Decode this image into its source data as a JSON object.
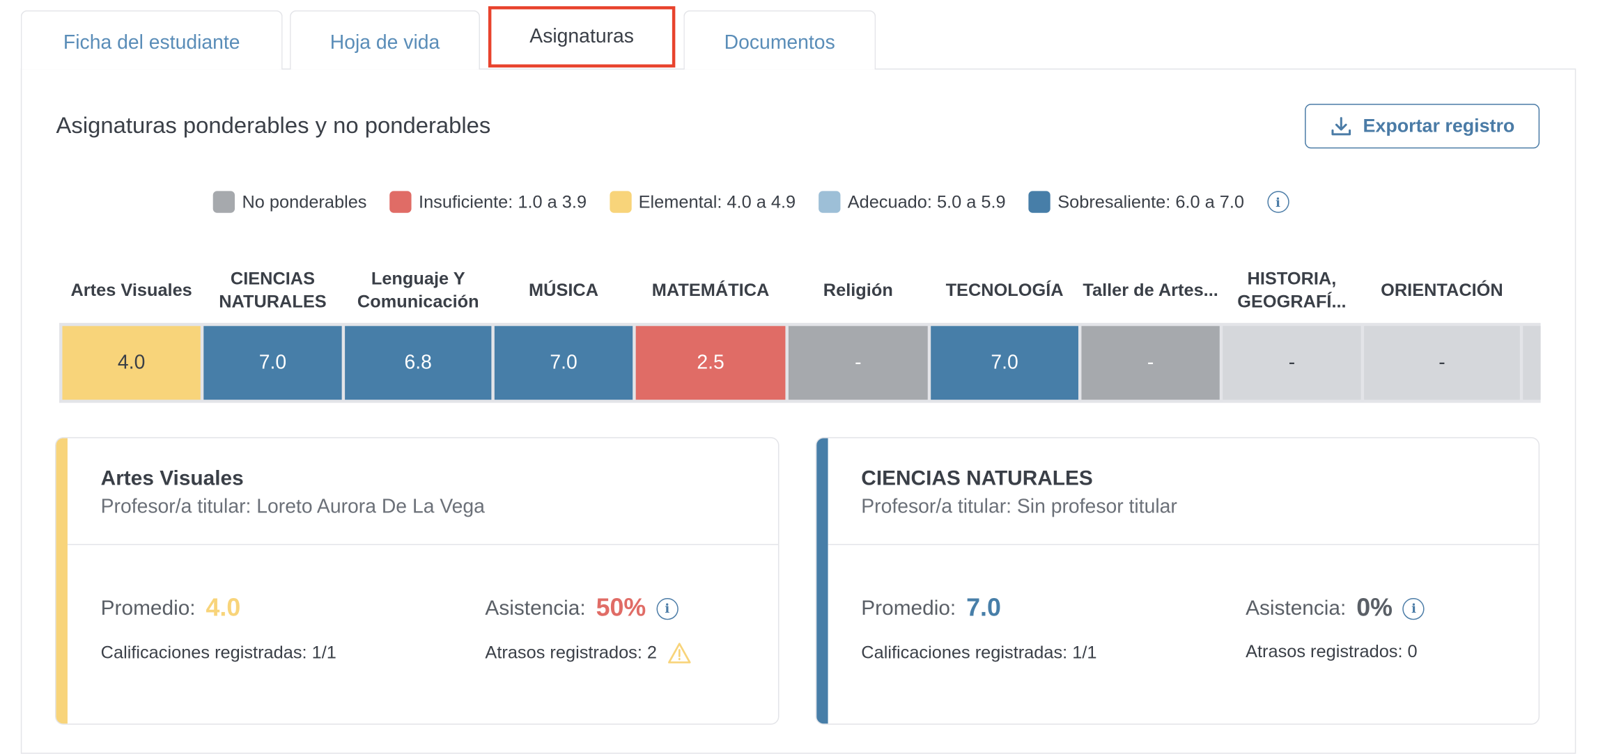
{
  "tabs": [
    {
      "label": "Ficha del estudiante"
    },
    {
      "label": "Hoja de vida"
    },
    {
      "label": "Asignaturas",
      "active": true
    },
    {
      "label": "Documentos"
    }
  ],
  "section_title": "Asignaturas ponderables y no ponderables",
  "export_label": "Exportar registro",
  "legend": [
    {
      "label": "No ponderables",
      "color": "#a6a9ad"
    },
    {
      "label": "Insuficiente: 1.0 a 3.9",
      "color": "#e06c66"
    },
    {
      "label": "Elemental: 4.0 a 4.9",
      "color": "#f8d47a"
    },
    {
      "label": "Adecuado: 5.0 a 5.9",
      "color": "#9dbfd7"
    },
    {
      "label": "Sobresaliente: 6.0 a 7.0",
      "color": "#477ea8"
    }
  ],
  "subjects": [
    {
      "name": "Artes Visuales",
      "value": "4.0",
      "color": "#f8d47a",
      "text": "#3a3f47"
    },
    {
      "name": "CIENCIAS NATURALES",
      "value": "7.0",
      "color": "#477ea8",
      "text": "#fff"
    },
    {
      "name": "Lenguaje Y Comunicación",
      "value": "6.8",
      "color": "#477ea8",
      "text": "#fff"
    },
    {
      "name": "MÚSICA",
      "value": "7.0",
      "color": "#477ea8",
      "text": "#fff"
    },
    {
      "name": "MATEMÁTICA",
      "value": "2.5",
      "color": "#e06c66",
      "text": "#fff"
    },
    {
      "name": "Religión",
      "value": "-",
      "color": "#a6a9ad",
      "text": "#fff"
    },
    {
      "name": "TECNOLOGÍA",
      "value": "7.0",
      "color": "#477ea8",
      "text": "#fff"
    },
    {
      "name": "Taller de Artes...",
      "value": "-",
      "color": "#a6a9ad",
      "text": "#fff"
    },
    {
      "name": "HISTORIA, GEOGRAFÍ...",
      "value": "-",
      "color": "#d5d7db",
      "text": "#3a3f47"
    },
    {
      "name": "ORIENTACIÓN",
      "value": "-",
      "color": "#d5d7db",
      "text": "#3a3f47"
    }
  ],
  "cards": [
    {
      "name": "Artes Visuales",
      "teacher": "Profesor/a titular: Loreto Aurora De La Vega",
      "color": "#f8d47a",
      "promedio_label": "Promedio:",
      "promedio": "4.0",
      "promedio_color": "#f8d47a",
      "asistencia_label": "Asistencia:",
      "asistencia": "50%",
      "asistencia_color": "#e06c66",
      "calificaciones": "Calificaciones registradas: 1/1",
      "atrasos": "Atrasos registrados: 2",
      "warning": true
    },
    {
      "name": "CIENCIAS NATURALES",
      "teacher": "Profesor/a titular: Sin profesor titular",
      "color": "#477ea8",
      "promedio_label": "Promedio:",
      "promedio": "7.0",
      "promedio_color": "#477ea8",
      "asistencia_label": "Asistencia:",
      "asistencia": "0%",
      "asistencia_color": "#5a5f66",
      "calificaciones": "Calificaciones registradas: 1/1",
      "atrasos": "Atrasos registrados: 0",
      "warning": false
    }
  ]
}
